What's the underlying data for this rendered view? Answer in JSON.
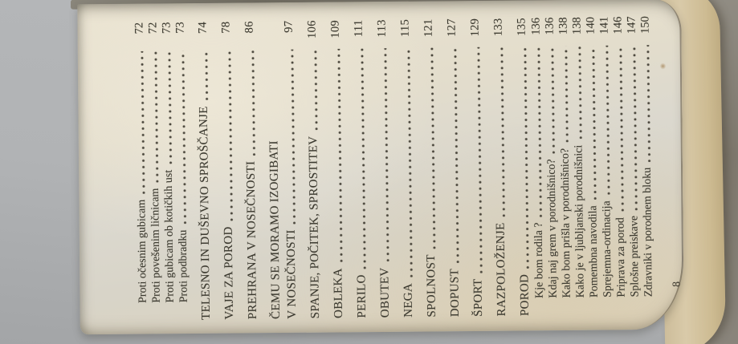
{
  "photo": {
    "description": "Photograph of an open book page, rotated 90 degrees counterclockwise, showing a Slovenian table of contents",
    "background_color": "#b4b6b8",
    "page_color": "#e3ddcc",
    "fore_edge_color": "#d2c096",
    "text_color": "#3c3a30"
  },
  "page": {
    "folio": "8"
  },
  "toc": {
    "entries": [
      {
        "label": "Proti očesnim gubicam",
        "page": "72",
        "level": 1
      },
      {
        "label": "Proti povešenim ličnicam",
        "page": "72",
        "level": 1
      },
      {
        "label": "Proti gubicam ob kotičkih ust",
        "page": "73",
        "level": 1
      },
      {
        "label": "Proti podbradku",
        "page": "73",
        "level": 1
      },
      {
        "label": "TELESNO IN DUŠEVNO SPROŠČANJE",
        "page": "74",
        "level": 0
      },
      {
        "label": "VAJE ZA POROD",
        "page": "78",
        "level": 0
      },
      {
        "label": "PREHRANA V NOSEČNOSTI",
        "page": "86",
        "level": 0
      },
      {
        "label": "ČEMU SE MORAMO IZOGIBATI",
        "page": null,
        "level": 0,
        "dots": false
      },
      {
        "label": "V NOSEČNOSTI",
        "page": "97",
        "level": 0,
        "cont": true
      },
      {
        "label": "SPANJE, POČITEK, SPROSTITEV",
        "page": "106",
        "level": 0
      },
      {
        "label": "OBLEKA",
        "page": "109",
        "level": 0
      },
      {
        "label": "PERILO",
        "page": "111",
        "level": 0
      },
      {
        "label": "OBUTEV",
        "page": "113",
        "level": 0
      },
      {
        "label": "NEGA",
        "page": "115",
        "level": 0
      },
      {
        "label": "SPOLNOST",
        "page": "121",
        "level": 0
      },
      {
        "label": "DOPUST",
        "page": "127",
        "level": 0
      },
      {
        "label": "ŠPORT",
        "page": "129",
        "level": 0
      },
      {
        "label": "RAZPOLOŽENJE",
        "page": "133",
        "level": 0
      },
      {
        "label": "POROD",
        "page": "135",
        "level": 0
      },
      {
        "label": "Kje bom rodila ?",
        "page": "136",
        "level": 1
      },
      {
        "label": "Kdaj naj grem v porodnišnico?",
        "page": "136",
        "level": 1
      },
      {
        "label": "Kako bom prišla v porodnišnico?",
        "page": "138",
        "level": 1
      },
      {
        "label": "Kako je v ljubljanski porodnišnici",
        "page": "138",
        "level": 1
      },
      {
        "label": "Pomembna navodila",
        "page": "140",
        "level": 1
      },
      {
        "label": "Sprejemna-ordinacija",
        "page": "141",
        "level": 1
      },
      {
        "label": "Priprava za porod",
        "page": "146",
        "level": 1
      },
      {
        "label": "Splošne preiskave",
        "page": "147",
        "level": 1
      },
      {
        "label": "Zdravniki v porodnem bloku",
        "page": "150",
        "level": 1
      }
    ]
  }
}
